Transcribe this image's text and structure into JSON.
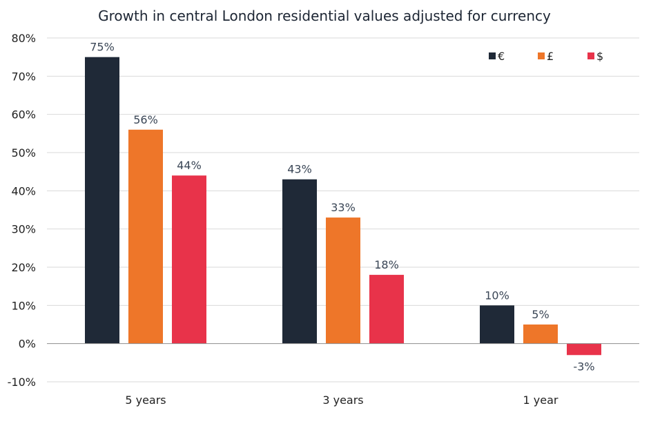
{
  "chart_data": {
    "type": "bar",
    "title": "Growth in central London residential values adjusted for currency",
    "xlabel": "",
    "ylabel": "",
    "categories": [
      "5 years",
      "3 years",
      "1 year"
    ],
    "series": [
      {
        "name": "€",
        "color": "#1f2937",
        "values": [
          75,
          43,
          10
        ],
        "labels": [
          "75%",
          "43%",
          "10%"
        ]
      },
      {
        "name": "£",
        "color": "#ee7629",
        "values": [
          56,
          33,
          5
        ],
        "labels": [
          "56%",
          "33%",
          "5%"
        ]
      },
      {
        "name": "$",
        "color": "#e8334a",
        "values": [
          44,
          18,
          -3
        ],
        "labels": [
          "44%",
          "18%",
          "-3%"
        ]
      }
    ],
    "ylim": [
      -10,
      80
    ],
    "yticks": [
      -10,
      0,
      10,
      20,
      30,
      40,
      50,
      60,
      70,
      80
    ],
    "ytick_labels": [
      "-10%",
      "0%",
      "10%",
      "20%",
      "30%",
      "40%",
      "50%",
      "60%",
      "70%",
      "80%"
    ],
    "grid": true,
    "legend": "top-right"
  }
}
